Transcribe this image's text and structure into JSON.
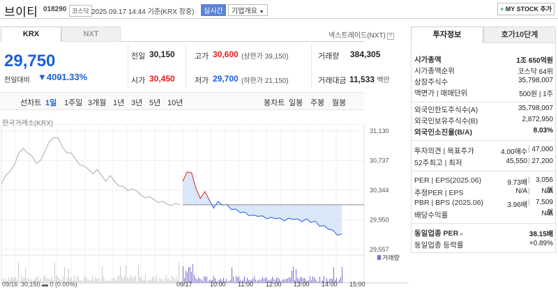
{
  "header": {
    "name": "브이티",
    "code": "018290",
    "market_badge": "코스닥",
    "datetime": "2025.09.17 14:44 기준(KRX 장중)",
    "live_label": "실시간",
    "corp_label": "기업개요",
    "mystock_label": "MY STOCK 추가"
  },
  "tabs": {
    "krx": "KRX",
    "nxt": "NXT",
    "nextrade": "넥스트레이드(NXT)"
  },
  "quote": {
    "price": "29,750",
    "change_label": "전일대비",
    "change": "400",
    "change_pct": "-1.33%",
    "prev_label": "전일",
    "prev": "30,150",
    "high_label": "고가",
    "high": "30,600",
    "upper_limit": "(상한가 39,150)",
    "volume_label": "거래량",
    "volume": "384,305",
    "open_label": "시가",
    "open": "30,450",
    "low_label": "저가",
    "low": "29,700",
    "lower_limit": "(하한가 21,150)",
    "amount_label": "거래대금",
    "amount": "11,533",
    "amount_unit": "백만"
  },
  "periods": [
    "선차트",
    "1일",
    "1주일",
    "3개월",
    "1년",
    "3년",
    "5년",
    "10년"
  ],
  "candle_periods": [
    "봉차트",
    "일봉",
    "주봉",
    "월봉"
  ],
  "chart_source": "한국거래소(KRX)",
  "chart_data": {
    "type": "line",
    "y_ticks": [
      "31,130",
      "30,737",
      "30,344",
      "29,950",
      "29,557"
    ],
    "y_values": [
      31130,
      30737,
      30344,
      29950,
      29557
    ],
    "x_ticks": [
      "09/17",
      "10:00",
      "11:00",
      "12:00",
      "13:00",
      "14:00",
      "15:00"
    ],
    "prev_day_label": "09/16",
    "prev_day_info": "30,150 ▬ 0 (0.00%)",
    "volume_legend": "거래량",
    "prev_close": 30150,
    "prev_day_series": [
      30450,
      30520,
      30600,
      30700,
      30820,
      30900,
      30860,
      30780,
      30700,
      30760,
      30840,
      30990,
      31060,
      31020,
      30920,
      30860,
      30820,
      30760,
      30700,
      30650,
      30620,
      30580,
      30600,
      30540,
      30480,
      30520,
      30460,
      30420,
      30380,
      30340,
      30380,
      30320,
      30280,
      30260,
      30240,
      30220,
      30200,
      30180,
      30160,
      30160,
      30150,
      30150
    ],
    "today_series": [
      30450,
      30600,
      30560,
      30380,
      30220,
      30340,
      30200,
      30120,
      30180,
      30160,
      30140,
      30100,
      30080,
      30060,
      30040,
      30020,
      30000,
      30010,
      29990,
      29980,
      29970,
      29980,
      29960,
      29950,
      29960,
      29970,
      29950,
      29940,
      29950,
      29930,
      29920,
      29880,
      29860,
      29840,
      29800,
      29760,
      29750
    ]
  },
  "right": {
    "tab1": "투자정보",
    "tab2": "호가10단계",
    "rows1": [
      {
        "label": "시가총액",
        "value": "1조 650억원",
        "bold": true
      },
      {
        "label": "시가총액순위",
        "value": "코스닥 64위"
      },
      {
        "label": "상장주식수",
        "value": "35,798,007"
      },
      {
        "label": "액면가 | 매매단위",
        "value": "500원 | 1주"
      }
    ],
    "rows2": [
      {
        "label": "외국인한도주식수(A)",
        "value": "35,798,007"
      },
      {
        "label": "외국인보유주식수(B)",
        "value": "2,872,950"
      },
      {
        "label": "외국인소진율(B/A)",
        "value": "8.03%",
        "bold": true
      }
    ],
    "opinion_label": "투자의견 | 목표주가",
    "opinion": "4.00매수",
    "target": "47,000",
    "w52_label": "52주최고 | 최저",
    "w52_high": "45,550",
    "w52_low": "27,200",
    "per_label": "PER | EPS(2025.06)",
    "per": "9.73배",
    "eps": "3,056원",
    "est_label": "추정PER | EPS",
    "est_per": "N/A",
    "est_eps": "N/A",
    "pbr_label": "PBR | BPS (2025.06)",
    "pbr": "3.96배",
    "bps": "7,509원",
    "div_label": "배당수익률",
    "div": "N/A",
    "peer_per_label": "동일업종 PER",
    "peer_per": "38.15배",
    "peer_chg_label": "동일업종 등락률",
    "peer_chg": "+0.89%"
  },
  "colors": {
    "up": "#e0201b",
    "down": "#1c5fd6"
  }
}
